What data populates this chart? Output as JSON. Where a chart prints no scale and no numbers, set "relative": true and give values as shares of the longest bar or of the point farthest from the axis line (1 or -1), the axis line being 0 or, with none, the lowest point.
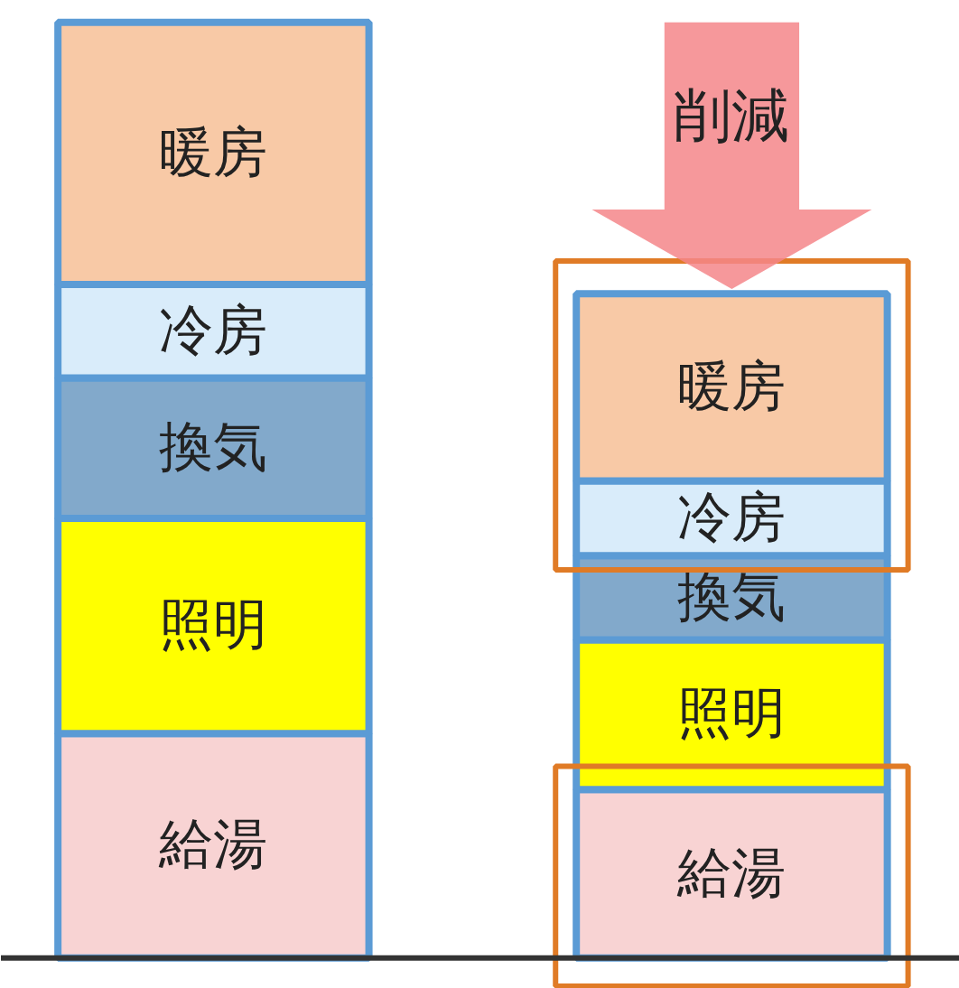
{
  "chart_data": {
    "type": "bar",
    "stacked": true,
    "relative": true,
    "categories": [
      null,
      null
    ],
    "series": [
      {
        "name": "給湯",
        "color": "#f8d3d3",
        "values": [
          0.24,
          0.18
        ]
      },
      {
        "name": "照明",
        "color": "#ffff00",
        "values": [
          0.23,
          0.16
        ]
      },
      {
        "name": "換気",
        "color": "#82a9cb",
        "values": [
          0.15,
          0.09
        ]
      },
      {
        "name": "冷房",
        "color": "#d9ecfa",
        "values": [
          0.1,
          0.08
        ]
      },
      {
        "name": "暖房",
        "color": "#f8c9a6",
        "values": [
          0.28,
          0.2
        ]
      }
    ],
    "annotations": [
      "削減"
    ]
  }
}
